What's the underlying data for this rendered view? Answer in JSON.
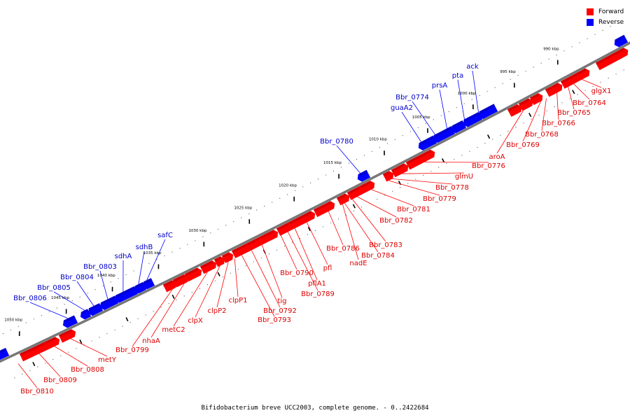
{
  "caption": "Bifidobacterium breve UCC2003, complete genome. - 0..2422684",
  "colors": {
    "forward": "#ff0000",
    "forward_dark": "#b00000",
    "reverse": "#0000ff",
    "reverse_dark": "#0000a8",
    "label_forward": "#dd0000",
    "label_reverse": "#0000cc",
    "backbone": "#777777",
    "tick": "#000000"
  },
  "legend": [
    {
      "label": "Forward",
      "color": "#ff0000"
    },
    {
      "label": "Reverse",
      "color": "#0000ff"
    }
  ],
  "ticks": [
    "990 kbp",
    "995 kbp",
    "1000 kbp",
    "1005 kbp",
    "1010 kbp",
    "1015 kbp",
    "1020 kbp",
    "1025 kbp",
    "1030 kbp",
    "1035 kbp",
    "1040 kbp",
    "1045 kbp",
    "1050 kbp"
  ],
  "forward_labels": [
    "glgX1",
    "Bbr_0764",
    "Bbr_0765",
    "Bbr_0766",
    "Bbr_0768",
    "Bbr_0769",
    "aroA",
    "Bbr_0776",
    "glmU",
    "Bbr_0778",
    "Bbr_0779",
    "Bbr_0781",
    "Bbr_0782",
    "Bbr_0783",
    "Bbr_0784",
    "nadE",
    "Bbr_0786",
    "pfl",
    "pflA1",
    "Bbr_0789",
    "Bbr_0790",
    "tig",
    "Bbr_0792",
    "Bbr_0793",
    "clpP1",
    "clpP2",
    "clpX",
    "metC2",
    "nhaA",
    "Bbr_0799",
    "metY",
    "Bbr_0808",
    "Bbr_0809",
    "Bbr_0810"
  ],
  "reverse_labels": [
    "ack",
    "pta",
    "prsA",
    "Bbr_0774",
    "guaA2",
    "Bbr_0780",
    "safC",
    "sdhB",
    "sdhA",
    "Bbr_0803",
    "Bbr_0804",
    "Bbr_0805",
    "Bbr_0806"
  ]
}
